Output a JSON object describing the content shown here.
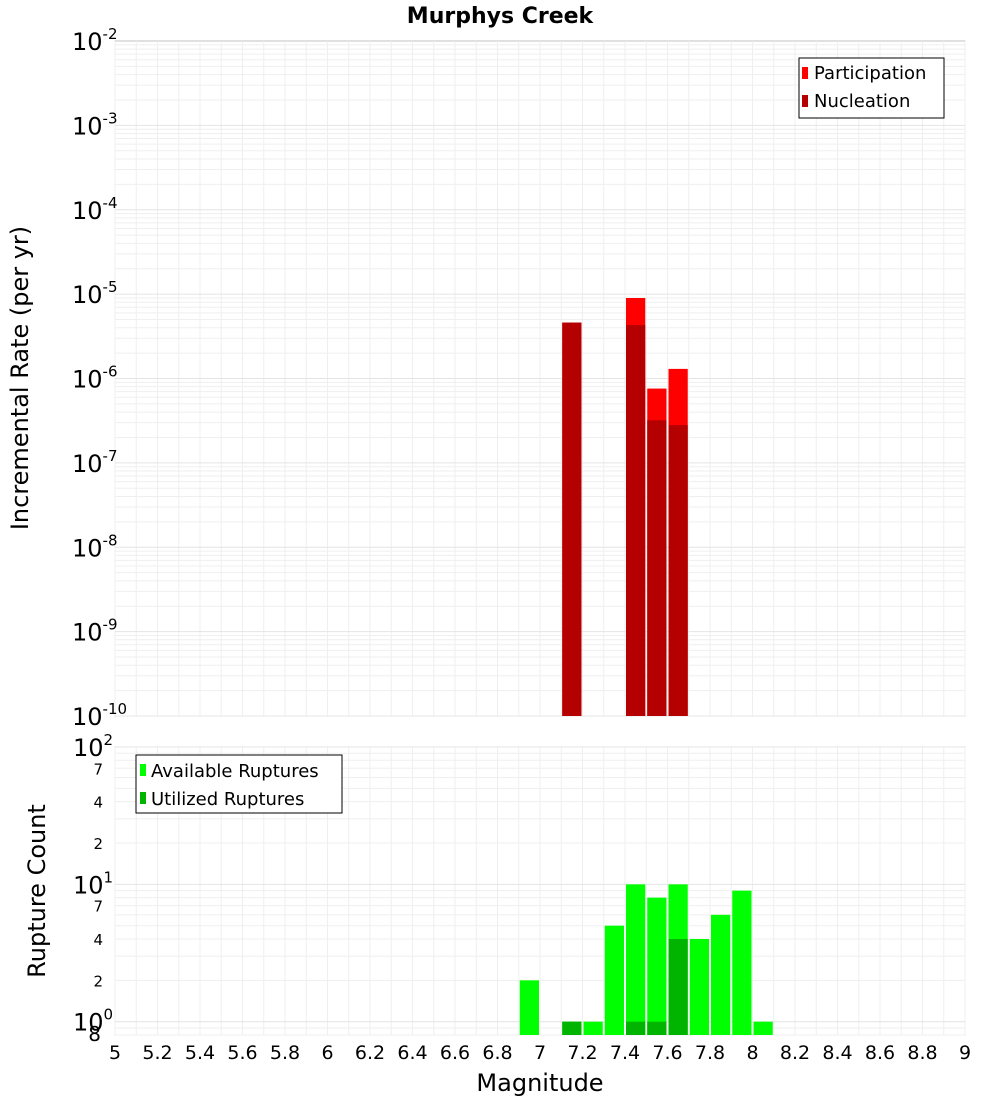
{
  "chart_data": [
    {
      "type": "bar",
      "title": "Murphys Creek",
      "xlabel": "",
      "ylabel": "Incremental Rate (per yr)",
      "yscale": "log",
      "ylim": [
        1e-10,
        0.01
      ],
      "xlim": [
        5,
        9
      ],
      "legend_position": "top-right",
      "ytick_labels": [
        {
          "base": "10",
          "exp": "-10"
        },
        {
          "base": "10",
          "exp": "-9"
        },
        {
          "base": "10",
          "exp": "-8"
        },
        {
          "base": "10",
          "exp": "-7"
        },
        {
          "base": "10",
          "exp": "-6"
        },
        {
          "base": "10",
          "exp": "-5"
        },
        {
          "base": "10",
          "exp": "-4"
        },
        {
          "base": "10",
          "exp": "-3"
        },
        {
          "base": "10",
          "exp": "-2"
        }
      ],
      "series": [
        {
          "name": "Participation",
          "color": "#ff0000",
          "points": [
            {
              "x": 7.15,
              "y": 4.6e-06
            },
            {
              "x": 7.45,
              "y": 9e-06
            },
            {
              "x": 7.55,
              "y": 7.6e-07
            },
            {
              "x": 7.65,
              "y": 1.3e-06
            }
          ]
        },
        {
          "name": "Nucleation",
          "color": "#b40000",
          "points": [
            {
              "x": 7.15,
              "y": 4.6e-06
            },
            {
              "x": 7.45,
              "y": 4.3e-06
            },
            {
              "x": 7.55,
              "y": 3.2e-07
            },
            {
              "x": 7.65,
              "y": 2.8e-07
            }
          ]
        }
      ]
    },
    {
      "type": "bar",
      "title": "",
      "xlabel": "Magnitude",
      "ylabel": "Rupture Count",
      "yscale": "log",
      "ylim": [
        0.8,
        100
      ],
      "xlim": [
        5,
        9
      ],
      "legend_position": "top-left",
      "major_ytick_labels": [
        {
          "value": 1,
          "base": "10",
          "exp": "0"
        },
        {
          "value": 10,
          "base": "10",
          "exp": "1"
        },
        {
          "value": 100,
          "base": "10",
          "exp": "2"
        }
      ],
      "minor_ytick_labels": [
        {
          "value": 0.8,
          "label": "8"
        },
        {
          "value": 2,
          "label": "2"
        },
        {
          "value": 4,
          "label": "4"
        },
        {
          "value": 7,
          "label": "7"
        },
        {
          "value": 20,
          "label": "2"
        },
        {
          "value": 40,
          "label": "4"
        },
        {
          "value": 70,
          "label": "7"
        }
      ],
      "xtick_labels": [
        "5",
        "5.2",
        "5.4",
        "5.6",
        "5.8",
        "6",
        "6.2",
        "6.4",
        "6.6",
        "6.8",
        "7",
        "7.2",
        "7.4",
        "7.6",
        "7.8",
        "8",
        "8.2",
        "8.4",
        "8.6",
        "8.8",
        "9"
      ],
      "series": [
        {
          "name": "Available Ruptures",
          "color": "#00ff00",
          "points": [
            {
              "x": 6.95,
              "y": 2
            },
            {
              "x": 7.15,
              "y": 1
            },
            {
              "x": 7.25,
              "y": 1
            },
            {
              "x": 7.35,
              "y": 5
            },
            {
              "x": 7.45,
              "y": 10
            },
            {
              "x": 7.55,
              "y": 8
            },
            {
              "x": 7.65,
              "y": 10
            },
            {
              "x": 7.75,
              "y": 4
            },
            {
              "x": 7.85,
              "y": 6
            },
            {
              "x": 7.95,
              "y": 9
            },
            {
              "x": 8.05,
              "y": 1
            }
          ]
        },
        {
          "name": "Utilized Ruptures",
          "color": "#00b400",
          "points": [
            {
              "x": 7.15,
              "y": 1
            },
            {
              "x": 7.45,
              "y": 1
            },
            {
              "x": 7.55,
              "y": 1
            },
            {
              "x": 7.65,
              "y": 4
            }
          ]
        }
      ]
    }
  ]
}
